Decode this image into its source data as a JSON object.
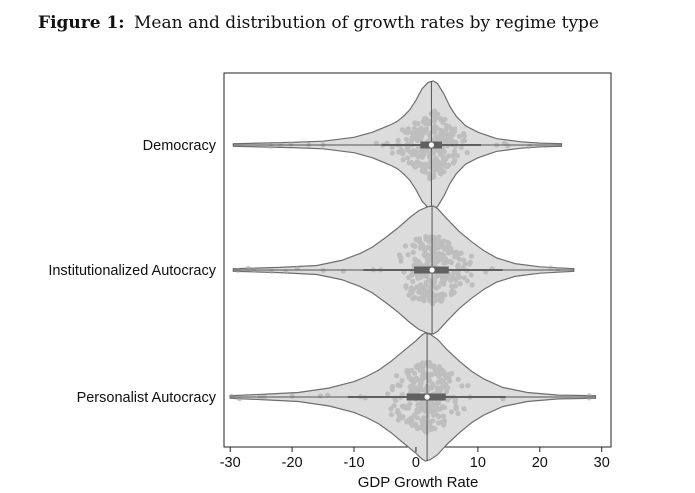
{
  "figure": {
    "label": "Figure 1:",
    "title": "Mean and distribution of growth rates by regime type"
  },
  "chart_data": {
    "type": "violin",
    "title": "Mean and distribution of growth rates by regime type",
    "xlabel": "GDP Growth Rate",
    "ylabel": "",
    "xlim": [
      -31,
      31.5
    ],
    "xticks": [
      -30,
      -20,
      -10,
      0,
      10,
      20,
      30
    ],
    "xtick_labels": [
      "-30",
      "-20",
      "-10",
      "0",
      "10",
      "20",
      "30"
    ],
    "colors": {
      "violin_fill": "#dcdcdc",
      "violin_edge": "#6e6e6e",
      "points": "#a6a6a6",
      "box": "#606060",
      "median": "#ffffff"
    },
    "series": [
      {
        "name": "Democracy",
        "min": -29.5,
        "max": 23.5,
        "q1": 0.7,
        "median": 2.5,
        "q3": 4.2,
        "whisker_low": -5.5,
        "whisker_high": 10.5,
        "violin_x": [
          -29.5,
          -20,
          -15,
          -10,
          -7,
          -5,
          -4,
          -3,
          -2,
          -1,
          0,
          1,
          2,
          2.8,
          3.5,
          4.5,
          5.5,
          6.5,
          8,
          10,
          13,
          17,
          20,
          23.5
        ],
        "violin_halfwidth": [
          0.02,
          0.04,
          0.06,
          0.12,
          0.2,
          0.28,
          0.32,
          0.37,
          0.45,
          0.55,
          0.7,
          0.88,
          0.98,
          1.0,
          0.96,
          0.8,
          0.6,
          0.45,
          0.3,
          0.2,
          0.1,
          0.05,
          0.03,
          0.02
        ]
      },
      {
        "name": "Institutionalized Autocracy",
        "min": -29.5,
        "max": 25.5,
        "q1": -0.3,
        "median": 2.6,
        "q3": 5.3,
        "whisker_low": -8.5,
        "whisker_high": 14,
        "violin_x": [
          -29.5,
          -22,
          -16,
          -12,
          -9,
          -7,
          -5,
          -3,
          -1,
          0.5,
          2,
          2.8,
          3.5,
          5,
          7,
          9,
          11,
          13,
          16,
          20,
          25.5
        ],
        "violin_halfwidth": [
          0.02,
          0.04,
          0.07,
          0.15,
          0.26,
          0.36,
          0.5,
          0.65,
          0.82,
          0.93,
          0.99,
          1.0,
          0.96,
          0.8,
          0.6,
          0.44,
          0.3,
          0.19,
          0.1,
          0.05,
          0.02
        ]
      },
      {
        "name": "Personalist Autocracy",
        "min": -30,
        "max": 29,
        "q1": -1.5,
        "median": 1.8,
        "q3": 4.8,
        "whisker_low": -11,
        "whisker_high": 14.5,
        "violin_x": [
          -30,
          -25,
          -19,
          -14,
          -10,
          -8,
          -6,
          -4,
          -2,
          0,
          1,
          1.5,
          2.3,
          3.5,
          5,
          7,
          9,
          11,
          14,
          18,
          23,
          29
        ],
        "violin_halfwidth": [
          0.02,
          0.04,
          0.07,
          0.14,
          0.24,
          0.32,
          0.42,
          0.56,
          0.72,
          0.88,
          0.97,
          1.0,
          0.98,
          0.9,
          0.74,
          0.56,
          0.4,
          0.28,
          0.15,
          0.07,
          0.03,
          0.02
        ]
      }
    ]
  }
}
